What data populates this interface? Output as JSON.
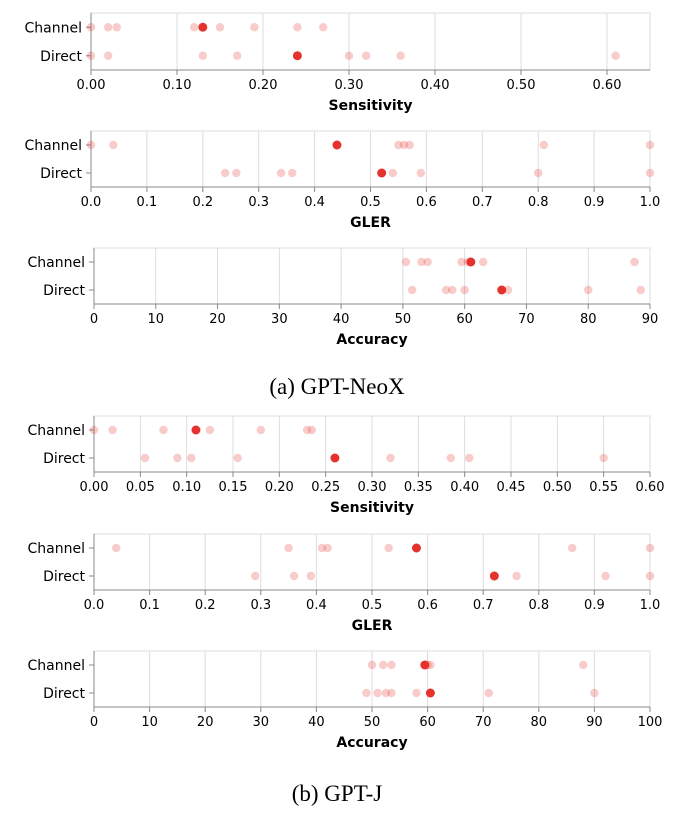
{
  "captions": {
    "neox": "(a) GPT-NeoX",
    "gptj": "(b) GPT-J"
  },
  "colors": {
    "point": "#e5322d",
    "grid": "#dddddd",
    "axis": "#888888",
    "text": "#000000"
  },
  "chart_data": [
    {
      "id": "neox-sensitivity",
      "type": "scatter",
      "model": "GPT-NeoX",
      "xlabel": "Sensitivity",
      "xlim": [
        0.0,
        0.65
      ],
      "ticks": [
        0.0,
        0.1,
        0.2,
        0.3,
        0.4,
        0.5,
        0.6
      ],
      "tick_labels": [
        "0.00",
        "0.10",
        "0.20",
        "0.30",
        "0.40",
        "0.50",
        "0.60"
      ],
      "categories": [
        "Channel",
        "Direct"
      ],
      "series": [
        {
          "name": "Channel",
          "values": [
            0.0,
            0.02,
            0.03,
            0.12,
            0.13,
            0.15,
            0.19,
            0.24,
            0.27
          ],
          "highlight": 0.13
        },
        {
          "name": "Direct",
          "values": [
            0.0,
            0.02,
            0.13,
            0.17,
            0.24,
            0.3,
            0.32,
            0.36,
            0.61
          ],
          "highlight": 0.24
        }
      ]
    },
    {
      "id": "neox-gler",
      "type": "scatter",
      "model": "GPT-NeoX",
      "xlabel": "GLER",
      "xlim": [
        0.0,
        1.0
      ],
      "ticks": [
        0.0,
        0.1,
        0.2,
        0.3,
        0.4,
        0.5,
        0.6,
        0.7,
        0.8,
        0.9,
        1.0
      ],
      "tick_labels": [
        "0.0",
        "0.1",
        "0.2",
        "0.3",
        "0.4",
        "0.5",
        "0.6",
        "0.7",
        "0.8",
        "0.9",
        "1.0"
      ],
      "categories": [
        "Channel",
        "Direct"
      ],
      "series": [
        {
          "name": "Channel",
          "values": [
            0.0,
            0.04,
            0.44,
            0.55,
            0.56,
            0.57,
            0.81,
            1.0
          ],
          "highlight": 0.44
        },
        {
          "name": "Direct",
          "values": [
            0.24,
            0.26,
            0.34,
            0.36,
            0.52,
            0.54,
            0.59,
            0.8,
            1.0
          ],
          "highlight": 0.52
        }
      ]
    },
    {
      "id": "neox-accuracy",
      "type": "scatter",
      "model": "GPT-NeoX",
      "xlabel": "Accuracy",
      "xlim": [
        0,
        90
      ],
      "ticks": [
        0,
        10,
        20,
        30,
        40,
        50,
        60,
        70,
        80,
        90
      ],
      "tick_labels": [
        "0",
        "10",
        "20",
        "30",
        "40",
        "50",
        "60",
        "70",
        "80",
        "90"
      ],
      "categories": [
        "Channel",
        "Direct"
      ],
      "series": [
        {
          "name": "Channel",
          "values": [
            50.5,
            53.0,
            54.0,
            59.5,
            60.5,
            63.0,
            87.5
          ],
          "highlight": 61.0
        },
        {
          "name": "Direct",
          "values": [
            51.5,
            57.0,
            58.0,
            60.0,
            66.0,
            67.0,
            80.0,
            88.5
          ],
          "highlight": 66.0
        }
      ]
    },
    {
      "id": "gptj-sensitivity",
      "type": "scatter",
      "model": "GPT-J",
      "xlabel": "Sensitivity",
      "xlim": [
        0.0,
        0.6
      ],
      "ticks": [
        0.0,
        0.05,
        0.1,
        0.15,
        0.2,
        0.25,
        0.3,
        0.35,
        0.4,
        0.45,
        0.5,
        0.55,
        0.6
      ],
      "tick_labels": [
        "0.00",
        "0.05",
        "0.10",
        "0.15",
        "0.20",
        "0.25",
        "0.30",
        "0.35",
        "0.40",
        "0.45",
        "0.50",
        "0.55",
        "0.60"
      ],
      "categories": [
        "Channel",
        "Direct"
      ],
      "series": [
        {
          "name": "Channel",
          "values": [
            0.0,
            0.02,
            0.075,
            0.125,
            0.18,
            0.23,
            0.235
          ],
          "highlight": 0.11
        },
        {
          "name": "Direct",
          "values": [
            0.055,
            0.09,
            0.105,
            0.155,
            0.32,
            0.385,
            0.405,
            0.55
          ],
          "highlight": 0.26
        }
      ]
    },
    {
      "id": "gptj-gler",
      "type": "scatter",
      "model": "GPT-J",
      "xlabel": "GLER",
      "xlim": [
        0.0,
        1.0
      ],
      "ticks": [
        0.0,
        0.1,
        0.2,
        0.3,
        0.4,
        0.5,
        0.6,
        0.7,
        0.8,
        0.9,
        1.0
      ],
      "tick_labels": [
        "0.0",
        "0.1",
        "0.2",
        "0.3",
        "0.4",
        "0.5",
        "0.6",
        "0.7",
        "0.8",
        "0.9",
        "1.0"
      ],
      "categories": [
        "Channel",
        "Direct"
      ],
      "series": [
        {
          "name": "Channel",
          "values": [
            0.04,
            0.35,
            0.41,
            0.42,
            0.53,
            0.86,
            1.0
          ],
          "highlight": 0.58
        },
        {
          "name": "Direct",
          "values": [
            0.29,
            0.36,
            0.39,
            0.76,
            0.92,
            1.0
          ],
          "highlight": 0.72
        }
      ]
    },
    {
      "id": "gptj-accuracy",
      "type": "scatter",
      "model": "GPT-J",
      "xlabel": "Accuracy",
      "xlim": [
        0,
        100
      ],
      "ticks": [
        0,
        10,
        20,
        30,
        40,
        50,
        60,
        70,
        80,
        90,
        100
      ],
      "tick_labels": [
        "0",
        "10",
        "20",
        "30",
        "40",
        "50",
        "60",
        "70",
        "80",
        "90",
        "100"
      ],
      "categories": [
        "Channel",
        "Direct"
      ],
      "series": [
        {
          "name": "Channel",
          "values": [
            50.0,
            52.0,
            53.5,
            60.0,
            60.5,
            88.0
          ],
          "highlight": 59.5
        },
        {
          "name": "Direct",
          "values": [
            49.0,
            51.0,
            52.5,
            53.5,
            58.0,
            71.0,
            90.0
          ],
          "highlight": 60.5
        }
      ]
    }
  ]
}
